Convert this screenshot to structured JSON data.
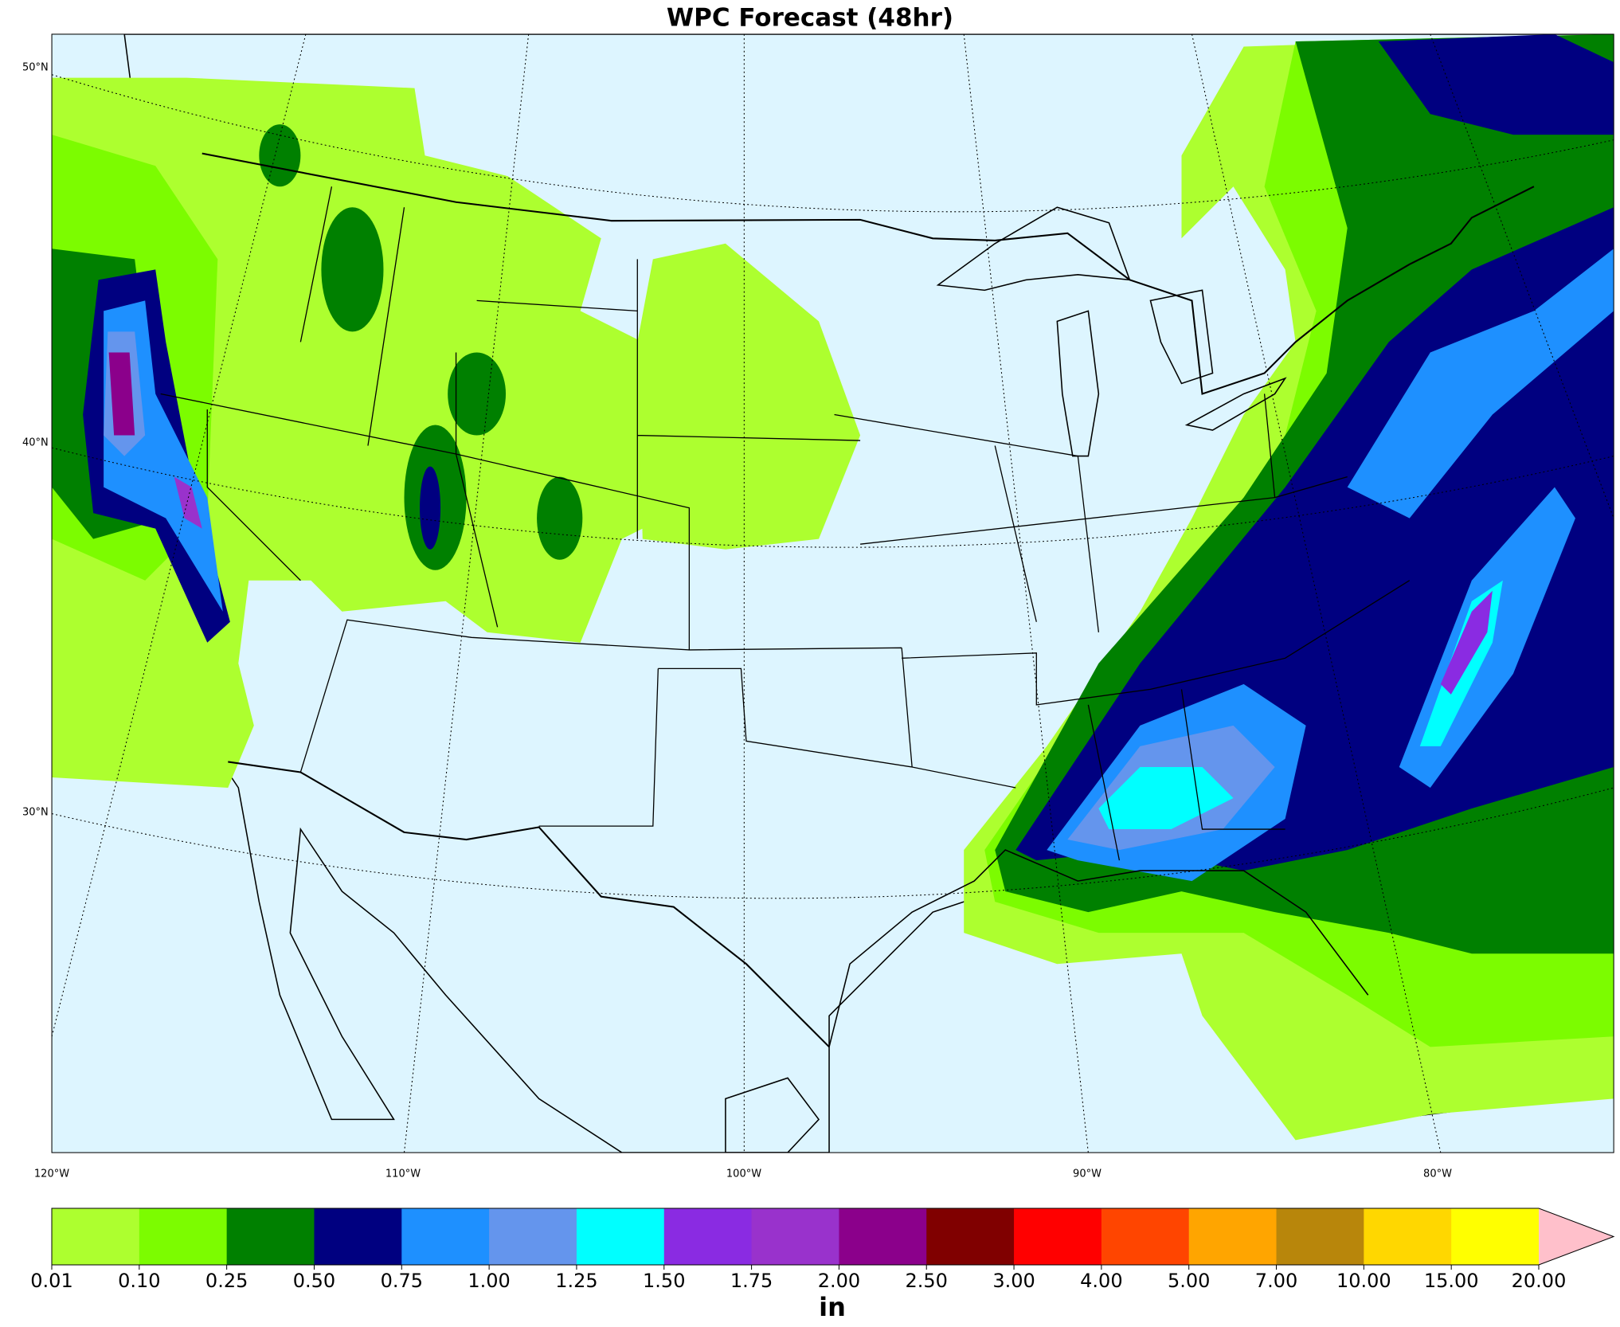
{
  "title": "WPC Forecast (48hr)",
  "lat_labels": [
    "50°N",
    "40°N",
    "30°N"
  ],
  "lon_labels": [
    "120°W",
    "110°W",
    "100°W",
    "90°W",
    "80°W"
  ],
  "colorbar": {
    "label": "in",
    "colors": [
      "#adff2f",
      "#7cfc00",
      "#008000",
      "#000080",
      "#1e90ff",
      "#6495ed",
      "#00ffff",
      "#8a2be2",
      "#9932cc",
      "#8b008b",
      "#800000",
      "#ff0000",
      "#ff4500",
      "#ffa500",
      "#b8860b",
      "#ffd700",
      "#ffff00"
    ],
    "extend_color": "#ffc0cb",
    "ticks": [
      0.01,
      {
        "value": 0.1,
        "label": "0.10"
      },
      0.25,
      {
        "value": 0.5,
        "label": "0.50"
      },
      0.75,
      {
        "value": 1,
        "label": "1.00"
      },
      1.25,
      {
        "value": 1.5,
        "label": "1.50"
      },
      1.75,
      {
        "value": 2,
        "label": "2.00"
      },
      {
        "value": 2.5,
        "label": "2.50"
      },
      {
        "value": 3,
        "label": "3.00"
      },
      {
        "value": 4,
        "label": "4.00"
      },
      {
        "value": 5,
        "label": "5.00"
      },
      {
        "value": 7,
        "label": "7.00"
      },
      {
        "value": 10,
        "label": "10.00"
      },
      {
        "value": 15,
        "label": "15.00"
      },
      {
        "value": 20,
        "label": "20.00"
      }
    ]
  }
}
